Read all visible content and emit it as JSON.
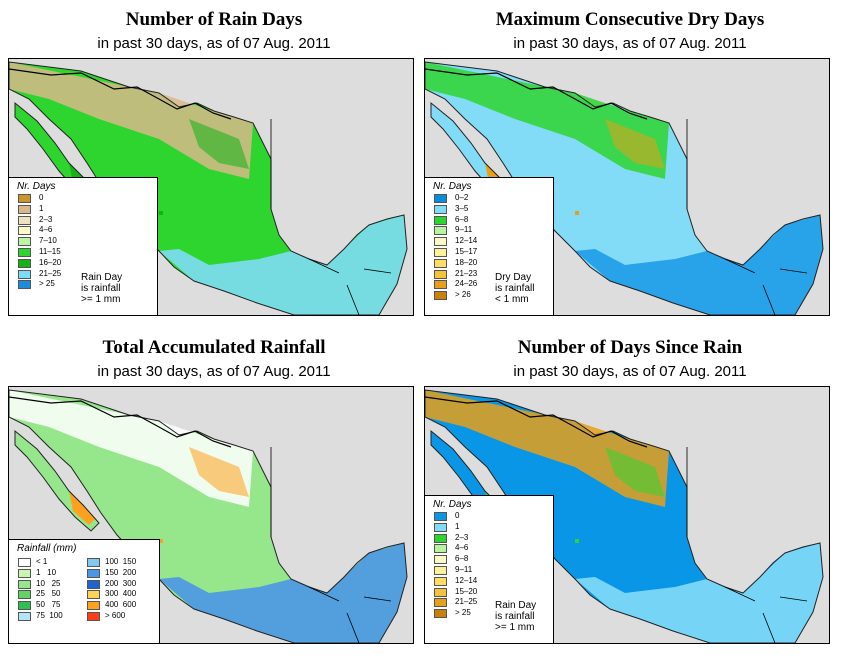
{
  "panels": [
    {
      "title": "Number of Rain Days",
      "subtitle": "in past 30 days, as of  07 Aug. 2011",
      "legend": {
        "title": "Nr. Days",
        "items": [
          {
            "label": "0",
            "color": "#c8962d"
          },
          {
            "label": "1",
            "color": "#d8b98a"
          },
          {
            "label": "2–3",
            "color": "#ece3be"
          },
          {
            "label": "4–6",
            "color": "#fafac8"
          },
          {
            "label": "7–10",
            "color": "#b9f5a5"
          },
          {
            "label": "11–15",
            "color": "#2fd52f"
          },
          {
            "label": "16–20",
            "color": "#14b214"
          },
          {
            "label": "21–25",
            "color": "#7fdcf6"
          },
          {
            "label": "> 25",
            "color": "#1e8cdc"
          }
        ]
      },
      "note": [
        "Rain Day",
        "is rainfall",
        ">= 1 mm"
      ],
      "map": {
        "land": "#2fd52f",
        "sea": "#dddddd",
        "north": "#d8b98a",
        "south": "#7fdcf6",
        "accent": "#14b214"
      }
    },
    {
      "title": "Maximum Consecutive Dry Days",
      "subtitle": "in past 30 days, as of  07 Aug. 2011",
      "legend": {
        "title": "Nr. Days",
        "items": [
          {
            "label": "0–2",
            "color": "#0a8cdc"
          },
          {
            "label": "3–5",
            "color": "#82dcf8"
          },
          {
            "label": "6–8",
            "color": "#2fd52f"
          },
          {
            "label": "9–11",
            "color": "#b4f5a0"
          },
          {
            "label": "12–14",
            "color": "#fafac8"
          },
          {
            "label": "15–17",
            "color": "#fff09a"
          },
          {
            "label": "18–20",
            "color": "#ffdc64"
          },
          {
            "label": "21–23",
            "color": "#f5c23c"
          },
          {
            "label": "24–26",
            "color": "#e6a019"
          },
          {
            "label": "> 26",
            "color": "#c8820a"
          }
        ]
      },
      "note": [
        "Dry Day",
        "is rainfall",
        "< 1 mm"
      ],
      "map": {
        "land": "#82dcf8",
        "sea": "#dddddd",
        "north": "#2fd52f",
        "south": "#1e9be6",
        "accent": "#e6a019"
      }
    },
    {
      "title": "Total Accumulated Rainfall",
      "subtitle": "in past 30 days, as of  07 Aug. 2011",
      "legend": {
        "title": "Rainfall (mm)",
        "col1": [
          {
            "label": "< 1",
            "color": "#ffffff"
          },
          {
            "label": "1   10",
            "color": "#c8f5b4"
          },
          {
            "label": "10   25",
            "color": "#96e68c"
          },
          {
            "label": "25   50",
            "color": "#64d264"
          },
          {
            "label": "50   75",
            "color": "#32be50"
          },
          {
            "label": "75  100",
            "color": "#b4e6f5"
          }
        ],
        "col2": [
          {
            "label": "100  150",
            "color": "#82c8f0"
          },
          {
            "label": "150  200",
            "color": "#4b96e6"
          },
          {
            "label": "200  300",
            "color": "#1e64d2"
          },
          {
            "label": "300  400",
            "color": "#ffd25a"
          },
          {
            "label": "400  600",
            "color": "#ffa01e"
          },
          {
            "label": "> 600",
            "color": "#ff3c14"
          }
        ]
      },
      "map": {
        "land": "#96e68c",
        "sea": "#dddddd",
        "north": "#ffffff",
        "south": "#4b96e6",
        "accent": "#ffa01e"
      }
    },
    {
      "title": "Number of Days Since Rain",
      "subtitle": "in past 30 days, as of  07 Aug. 2011",
      "legend": {
        "title": "Nr. Days",
        "items": [
          {
            "label": "0",
            "color": "#0a96e6"
          },
          {
            "label": "1",
            "color": "#82dcf8"
          },
          {
            "label": "2–3",
            "color": "#2fd52f"
          },
          {
            "label": "4–6",
            "color": "#b4f5a0"
          },
          {
            "label": "6–8",
            "color": "#fafac8"
          },
          {
            "label": "9–11",
            "color": "#fff09a"
          },
          {
            "label": "12–14",
            "color": "#ffdc64"
          },
          {
            "label": "15–20",
            "color": "#f5c23c"
          },
          {
            "label": "21–25",
            "color": "#e6a019"
          },
          {
            "label": "> 25",
            "color": "#c8820a"
          }
        ]
      },
      "note": [
        "Rain Day",
        "is rainfall",
        ">= 1 mm"
      ],
      "map": {
        "land": "#0a96e6",
        "sea": "#dddddd",
        "north": "#e6a019",
        "south": "#82dcf8",
        "accent": "#2fd52f"
      }
    }
  ]
}
